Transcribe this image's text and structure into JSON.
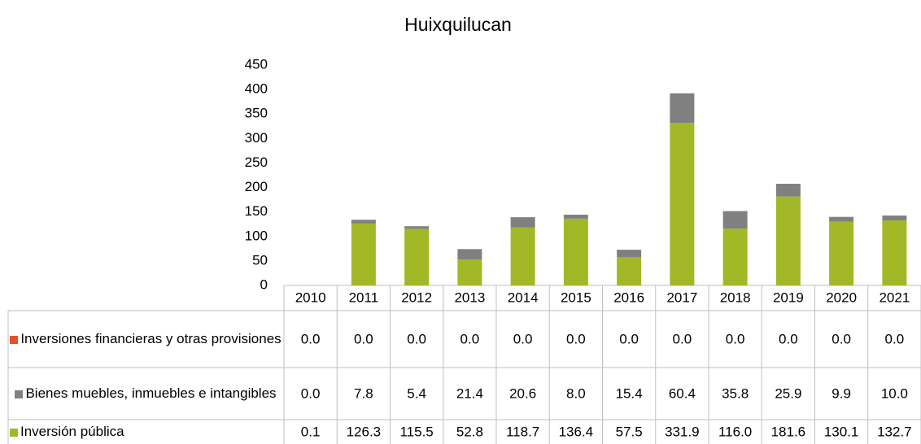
{
  "chart_data": {
    "type": "stacked_bar",
    "title": "Huixquilucan",
    "categories": [
      "2010",
      "2011",
      "2012",
      "2013",
      "2014",
      "2015",
      "2016",
      "2017",
      "2018",
      "2019",
      "2020",
      "2021"
    ],
    "series": [
      {
        "name": "Inversiones financieras y otras provisiones",
        "color": "#e2532a",
        "values": [
          0,
          0,
          0,
          0,
          0,
          0,
          0,
          0,
          0,
          0,
          0,
          0
        ],
        "value_labels": [
          "0.0",
          "0.0",
          "0.0",
          "0.0",
          "0.0",
          "0.0",
          "0.0",
          "0.0",
          "0.0",
          "0.0",
          "0.0",
          "0.0"
        ]
      },
      {
        "name": "Bienes muebles, inmuebles e intangibles",
        "color": "#808080",
        "values": [
          0,
          7.8,
          5.4,
          21.4,
          20.6,
          8,
          15.4,
          60.4,
          35.8,
          25.9,
          9.9,
          10
        ],
        "value_labels": [
          "0.0",
          "7.8",
          "5.4",
          "21.4",
          "20.6",
          "8.0",
          "15.4",
          "60.4",
          "35.8",
          "25.9",
          "9.9",
          "10.0"
        ]
      },
      {
        "name": "Inversión pública",
        "color": "#a2b826",
        "values": [
          0.1,
          126.3,
          115.5,
          52.8,
          118.7,
          136.4,
          57.5,
          331.9,
          116,
          181.6,
          130.1,
          132.7
        ],
        "value_labels": [
          "0.1",
          "126.3",
          "115.5",
          "52.8",
          "118.7",
          "136.4",
          "57.5",
          "331.9",
          "116.0",
          "181.6",
          "130.1",
          "132.7"
        ]
      }
    ],
    "ylim": [
      0,
      450
    ],
    "yticks": [
      0,
      50,
      100,
      150,
      200,
      250,
      300,
      350,
      400,
      450
    ],
    "grid": false
  }
}
